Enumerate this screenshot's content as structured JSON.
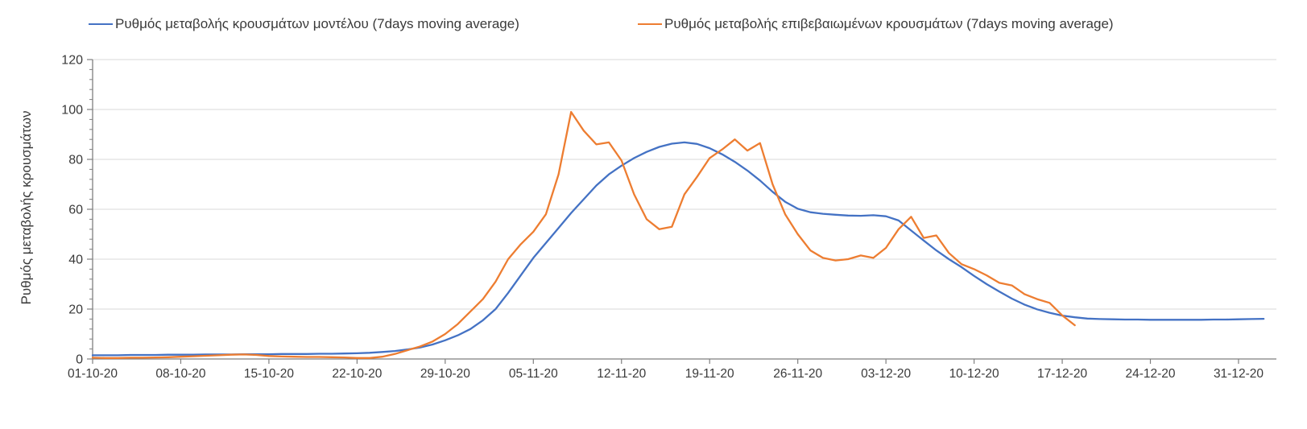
{
  "figure": {
    "background": "#ffffff",
    "grid_color": "#d9d9d9",
    "axis_color": "#7f7f7f",
    "tick_label_color": "#3a3a3a"
  },
  "legend": {
    "items": [
      {
        "label": "Ρυθμός μεταβολής κρουσμάτων μοντέλου (7days moving average)",
        "color": "#4472C4"
      },
      {
        "label": "Ρυθμός μεταβολής επιβεβαιωμένων κρουσμάτων (7days moving average)",
        "color": "#ED7D31"
      }
    ]
  },
  "chart_data": {
    "type": "line",
    "title": "",
    "xlabel": "",
    "ylabel": "Ρυθμός μεταβολής κρουσμάτων",
    "ylim": [
      0,
      120
    ],
    "y_major_step": 20,
    "y_minor_step": 4,
    "y_tick_labels": [
      "0",
      "20",
      "40",
      "60",
      "80",
      "100",
      "120"
    ],
    "grid": "horizontal",
    "legend_position": "top",
    "x_unit": "days since 01-10-20",
    "x_domain_days": [
      0,
      94
    ],
    "x_tick_interval_days": 7,
    "x_tick_labels": [
      "01-10-20",
      "08-10-20",
      "15-10-20",
      "22-10-20",
      "29-10-20",
      "05-11-20",
      "12-11-20",
      "19-11-20",
      "26-11-20",
      "03-12-20",
      "10-12-20",
      "17-12-20",
      "24-12-20",
      "31-12-20"
    ],
    "series": [
      {
        "name": "Ρυθμός μεταβολής κρουσμάτων μοντέλου (7days moving average)",
        "color": "#4472C4",
        "start_day": 0,
        "values": [
          1.5,
          1.5,
          1.5,
          1.6,
          1.6,
          1.6,
          1.7,
          1.7,
          1.7,
          1.8,
          1.8,
          1.8,
          1.9,
          1.9,
          1.9,
          2.0,
          2.0,
          2.0,
          2.1,
          2.1,
          2.2,
          2.3,
          2.5,
          2.8,
          3.2,
          3.8,
          4.6,
          5.8,
          7.5,
          9.5,
          12.0,
          15.5,
          20.0,
          26.5,
          33.5,
          40.5,
          46.5,
          52.5,
          58.5,
          64.0,
          69.5,
          74.0,
          77.5,
          80.5,
          83.0,
          85.0,
          86.3,
          86.8,
          86.2,
          84.5,
          82.0,
          79.0,
          75.5,
          71.5,
          67.0,
          63.0,
          60.2,
          58.8,
          58.2,
          57.8,
          57.5,
          57.4,
          57.6,
          57.2,
          55.5,
          51.5,
          47.5,
          43.5,
          40.0,
          36.8,
          33.3,
          30.0,
          27.0,
          24.2,
          21.8,
          19.9,
          18.5,
          17.4,
          16.7,
          16.2,
          16.0,
          15.9,
          15.8,
          15.8,
          15.7,
          15.7,
          15.7,
          15.7,
          15.7,
          15.8,
          15.8,
          15.9,
          16.0,
          16.1
        ]
      },
      {
        "name": "Ρυθμός μεταβολής επιβεβαιωμένων κρουσμάτων (7days moving average)",
        "color": "#ED7D31",
        "start_day": 0,
        "values": [
          0.5,
          0.4,
          0.4,
          0.5,
          0.5,
          0.6,
          0.7,
          0.9,
          1.1,
          1.3,
          1.5,
          1.7,
          1.8,
          1.6,
          1.2,
          1.0,
          0.9,
          0.8,
          0.8,
          0.7,
          0.6,
          0.4,
          0.4,
          0.9,
          2.0,
          3.5,
          5.0,
          7.0,
          10.0,
          14.0,
          19.0,
          24.0,
          31.0,
          40.0,
          46.0,
          51.0,
          58.0,
          74.0,
          99.0,
          91.5,
          86.0,
          86.8,
          79.5,
          66.0,
          56.0,
          52.0,
          53.0,
          66.0,
          73.0,
          80.5,
          84.0,
          88.0,
          83.5,
          86.5,
          70.0,
          58.0,
          50.0,
          43.5,
          40.5,
          39.5,
          40.0,
          41.5,
          40.5,
          44.5,
          52.0,
          57.0,
          48.5,
          49.5,
          42.5,
          38.0,
          36.0,
          33.5,
          30.5,
          29.5,
          26.0,
          24.0,
          22.5,
          17.5,
          13.5
        ]
      }
    ]
  }
}
